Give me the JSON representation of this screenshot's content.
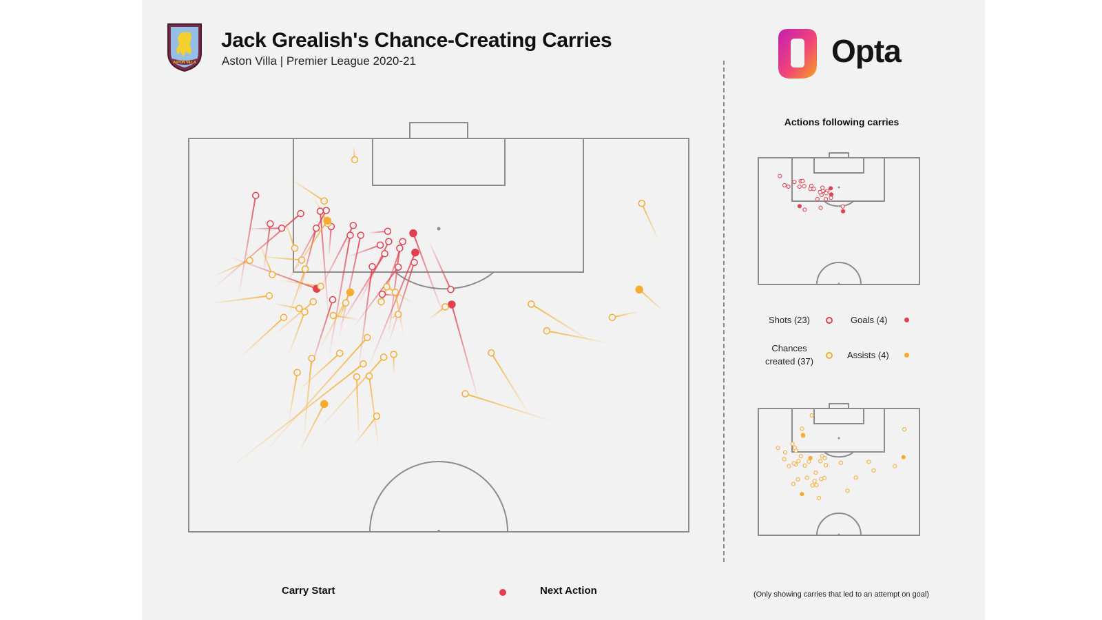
{
  "header": {
    "title": "Jack Grealish's Chance-Creating Carries",
    "subtitle": "Aston Villa | Premier League 2020-21",
    "crest_label": "ASTON VILLA"
  },
  "brand": {
    "name": "Opta"
  },
  "side_panel": {
    "title": "Actions following carries",
    "legend": {
      "shots": "Shots (23)",
      "goals": "Goals (4)",
      "chances_line1": "Chances",
      "chances_line2": "created (37)",
      "assists": "Assists (4)"
    }
  },
  "footer": {
    "carry_start": "Carry Start",
    "next_action": "Next Action",
    "note": "(Only showing carries that led to an attempt on goal)"
  },
  "colors": {
    "shot": "#e0404f",
    "chance": "#f5ac30",
    "pitch_line": "#8c8c8c",
    "background": "#f2f2f2"
  },
  "chart_data": [
    {
      "type": "scatter",
      "subject": "carries",
      "legend": [
        "Shots (23)",
        "Goals (4)",
        "Chances created (37)",
        "Assists (4)"
      ],
      "series": [
        {
          "name": "Shots (23)",
          "kind": "shot",
          "filled": false,
          "carries": [
            [
              10,
              60,
              13.4,
              85.5
            ],
            [
              15,
              66,
              16.3,
              78.3
            ],
            [
              12,
              77,
              18.6,
              77.2
            ],
            [
              5,
              62,
              22.4,
              80.9
            ],
            [
              28,
              54,
              26.3,
              81.5
            ],
            [
              22,
              60,
              25.5,
              77.2
            ],
            [
              28,
              44,
              32.3,
              75.4
            ],
            [
              34,
              42,
              36.7,
              67.4
            ],
            [
              26,
              61,
              32.9,
              77.9
            ],
            [
              20,
              64,
              27.5,
              81.7
            ],
            [
              40,
              48,
              45.1,
              68.5
            ],
            [
              33,
              52,
              41.9,
              67.3
            ],
            [
              38,
              56,
              42.8,
              73.8
            ],
            [
              40,
              50,
              42.2,
              72.1
            ],
            [
              30,
              49,
              34.4,
              75.4
            ],
            [
              28,
              70,
              28.5,
              77.6
            ],
            [
              42,
              60,
              38.7,
              60.4
            ],
            [
              48,
              74,
              52.4,
              61.6
            ],
            [
              30,
              52,
              39.2,
              70.7
            ],
            [
              34,
              58,
              40,
              73.8
            ],
            [
              36,
              76,
              39.8,
              76.4
            ],
            [
              32,
              70,
              38.3,
              72.9
            ],
            [
              24,
              40,
              28.8,
              59
            ]
          ]
        },
        {
          "name": "Goals (4)",
          "kind": "goal",
          "filled": true,
          "carries": [
            [
              8,
              70,
              25.6,
              61.8
            ],
            [
              36,
              42,
              45.3,
              71
            ],
            [
              51,
              55,
              44.9,
              75.9
            ],
            [
              58,
              33,
              52.6,
              57.8
            ]
          ]
        },
        {
          "name": "Chances created (37)",
          "kind": "chance",
          "filled": false,
          "carries": [
            [
              33,
              98,
              33.2,
              94.6
            ],
            [
              20,
              90,
              27.1,
              84.1
            ],
            [
              25,
              85,
              27.8,
              78.4
            ],
            [
              5,
              65,
              12.2,
              69
            ],
            [
              20,
              55,
              23.3,
              66.8
            ],
            [
              19,
              80,
              21.2,
              72.1
            ],
            [
              4,
              58,
              16.1,
              60
            ],
            [
              14,
              74,
              16.7,
              65.4
            ],
            [
              18,
              64,
              26.4,
              62.4
            ],
            [
              14,
              70,
              22.6,
              69.1
            ],
            [
              17,
              50,
              24.9,
              58.5
            ],
            [
              10,
              44,
              19,
              54.5
            ],
            [
              20,
              45,
              23.2,
              55.9
            ],
            [
              17,
              58,
              22.1,
              56.8
            ],
            [
              34,
              54,
              28.9,
              55
            ],
            [
              30,
              54,
              31.4,
              58.2
            ],
            [
              22,
              36,
              30.2,
              45.4
            ],
            [
              20,
              28,
              21.7,
              40.5
            ],
            [
              8,
              16,
              34.9,
              42.7
            ],
            [
              15,
              20,
              35.7,
              49.4
            ],
            [
              23,
              24,
              24.6,
              44.1
            ],
            [
              26,
              26,
              39,
              44.4
            ],
            [
              40,
              54,
              41.9,
              55.3
            ],
            [
              40,
              64,
              38.5,
              58.5
            ],
            [
              45,
              58,
              39.6,
              62.3
            ],
            [
              43,
              50,
              41.3,
              60.9
            ],
            [
              34,
              24,
              33.6,
              39.4
            ],
            [
              41,
              40,
              41,
              45.1
            ],
            [
              48,
              54,
              51.3,
              57.2
            ],
            [
              33,
              22,
              37.6,
              29.4
            ],
            [
              38,
              21,
              36.1,
              39.6
            ],
            [
              68,
              30,
              60.5,
              45.5
            ],
            [
              94,
              74,
              90.6,
              83.5
            ],
            [
              81,
              48,
              68.5,
              57.9
            ],
            [
              73,
              28,
              55.3,
              35.1
            ],
            [
              90,
              56,
              84.7,
              54.5
            ],
            [
              84,
              48,
              71.6,
              51.1
            ]
          ]
        },
        {
          "name": "Assists (4)",
          "kind": "assist",
          "filled": true,
          "carries": [
            [
              26,
              46,
              32.3,
              60.9
            ],
            [
              22,
              20,
              27.1,
              32.5
            ],
            [
              20,
              64,
              27.7,
              79.1
            ],
            [
              95,
              56,
              90.1,
              61.6
            ]
          ]
        }
      ]
    },
    {
      "type": "scatter",
      "subject": "next-action locations: Shots (23), Goals (4)"
    },
    {
      "type": "scatter",
      "subject": "next-action locations: Chances created (37), Assists (4)"
    }
  ]
}
